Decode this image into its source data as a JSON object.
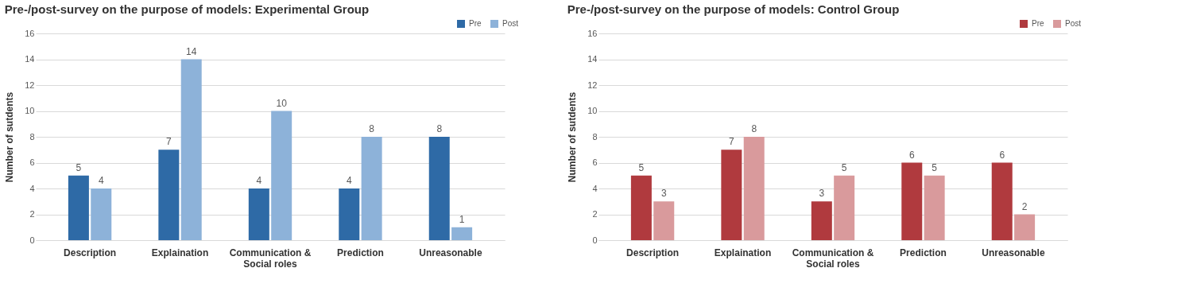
{
  "chart_data": [
    {
      "type": "bar",
      "title": "Pre-/post-survey on the purpose of models: Experimental Group",
      "ylabel": "Number of sutdents",
      "categories": [
        "Description",
        "Explaination",
        "Communication &\nSocial roles",
        "Prediction",
        "Unreasonable"
      ],
      "series": [
        {
          "name": "Pre",
          "color": "#2e6aa6",
          "values": [
            5,
            7,
            4,
            4,
            8
          ]
        },
        {
          "name": "Post",
          "color": "#8db2d9",
          "values": [
            4,
            14,
            10,
            8,
            1
          ]
        }
      ],
      "ylim": [
        0,
        16
      ],
      "yticks": [
        0,
        2,
        4,
        6,
        8,
        10,
        12,
        14,
        16
      ],
      "grid": "y",
      "legend": "top right",
      "data_labels": true
    },
    {
      "type": "bar",
      "title": "Pre-/post-survey on the purpose of models: Control Group",
      "ylabel": "Number of sutdents",
      "categories": [
        "Description",
        "Explaination",
        "Communication &\nSocial roles",
        "Prediction",
        "Unreasonable"
      ],
      "series": [
        {
          "name": "Pre",
          "color": "#b03a3e",
          "values": [
            5,
            7,
            3,
            6,
            6
          ]
        },
        {
          "name": "Post",
          "color": "#d99a9c",
          "values": [
            3,
            8,
            5,
            5,
            2
          ]
        }
      ],
      "ylim": [
        0,
        16
      ],
      "yticks": [
        0,
        2,
        4,
        6,
        8,
        10,
        12,
        14,
        16
      ],
      "grid": "y",
      "legend": "top right",
      "data_labels": true
    }
  ]
}
